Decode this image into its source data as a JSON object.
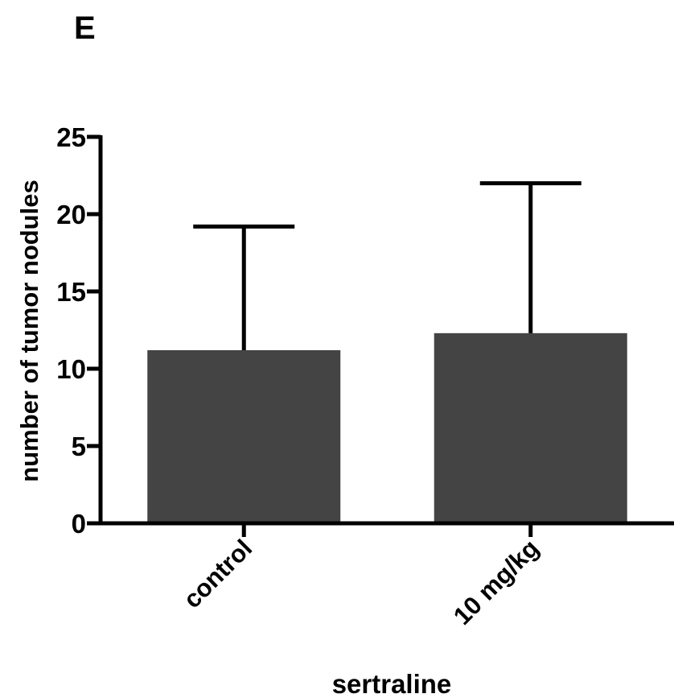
{
  "panel_label": "E",
  "chart_data": {
    "type": "bar",
    "categories": [
      "control",
      "10 mg/kg"
    ],
    "values": [
      11.2,
      12.3
    ],
    "error_upper": [
      19.2,
      22.0
    ],
    "xlabel": "sertraline",
    "ylabel": "number of tumor nodules",
    "ylim": [
      0,
      25
    ],
    "yticks": [
      0,
      5,
      10,
      15,
      20,
      25
    ],
    "bar_color": "#444444",
    "grid": false
  }
}
